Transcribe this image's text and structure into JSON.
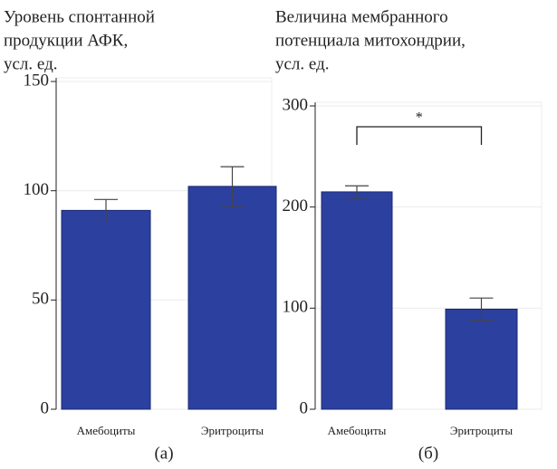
{
  "chart_data": [
    {
      "type": "bar",
      "title": [
        "Уровень спонтанной",
        "продукции АФК,",
        "усл. ед."
      ],
      "categories": [
        "Амебоциты",
        "Эритроциты"
      ],
      "values": [
        91,
        102
      ],
      "errors": [
        5,
        9
      ],
      "color": "#2c40a0",
      "ylim": [
        0,
        150
      ],
      "yticks": [
        0,
        50,
        100,
        150
      ],
      "grid": true,
      "panel_label": "(а)"
    },
    {
      "type": "bar",
      "title": [
        "Величина мембранного",
        "потенциала митохондрии,",
        "усл. ед."
      ],
      "categories": [
        "Амебоциты",
        "Эритроциты"
      ],
      "values": [
        215,
        99
      ],
      "errors": [
        6,
        11
      ],
      "color": "#2c40a0",
      "ylim": [
        0,
        300
      ],
      "yticks": [
        0,
        100,
        200,
        300
      ],
      "grid": true,
      "annotation": "*",
      "panel_label": "(б)"
    }
  ]
}
